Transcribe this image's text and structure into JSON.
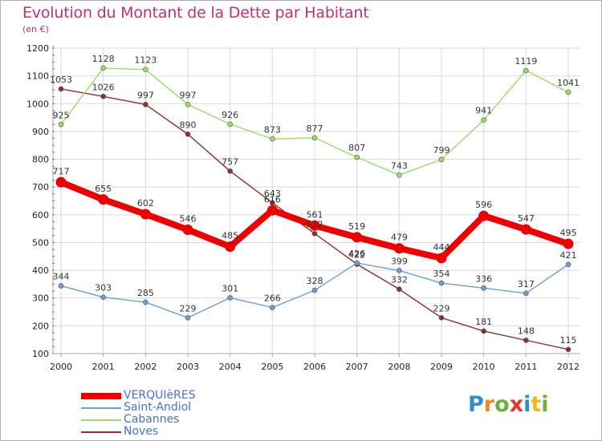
{
  "header": {
    "title": "Evolution du Montant de la Dette par Habitant",
    "subtitle": "(en €)"
  },
  "brand": {
    "letters": [
      "P",
      "r",
      "o",
      "x",
      "i",
      "t",
      "i"
    ]
  },
  "colors": {
    "title": "#c0316e",
    "legend_text": "#4a6fd6",
    "grid": "#d9d9d9",
    "axis": "#a8a8a8"
  },
  "chart_data": {
    "type": "line",
    "title": "Evolution du Montant de la Dette par Habitant",
    "subtitle": "(en €)",
    "xlabel": "",
    "ylabel": "",
    "x": [
      "2000",
      "2001",
      "2002",
      "2003",
      "2004",
      "2005",
      "2006",
      "2007",
      "2008",
      "2009",
      "2010",
      "2011",
      "2012"
    ],
    "ylim": [
      100,
      1200
    ],
    "yticks": [
      100,
      200,
      300,
      400,
      500,
      600,
      700,
      800,
      900,
      1000,
      1100,
      1200
    ],
    "grid": true,
    "legend_position": "bottom-left",
    "series": [
      {
        "name": "VERQUIèRES",
        "color": "#ee0000",
        "values": [
          717,
          655,
          602,
          546,
          485,
          616,
          561,
          519,
          479,
          444,
          596,
          547,
          495
        ]
      },
      {
        "name": "Saint-Andiol",
        "color": "#6a9fd4",
        "values": [
          344,
          303,
          285,
          229,
          301,
          266,
          328,
          426,
          399,
          354,
          336,
          317,
          421
        ]
      },
      {
        "name": "Cabannes",
        "color": "#99dd66",
        "values": [
          925,
          1128,
          1123,
          997,
          926,
          873,
          877,
          807,
          743,
          799,
          941,
          1119,
          1041
        ]
      },
      {
        "name": "Noves",
        "color": "#8b2f2f",
        "values": [
          1053,
          1026,
          997,
          890,
          757,
          643,
          532,
          422,
          332,
          229,
          181,
          148,
          115
        ]
      }
    ]
  }
}
